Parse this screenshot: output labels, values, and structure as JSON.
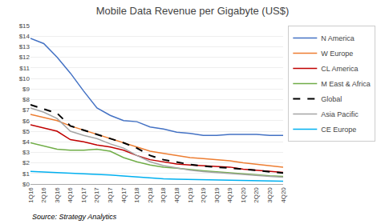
{
  "chart_data": {
    "type": "line",
    "title": "Mobile Data Revenue per Gigabyte (US$)",
    "annotations": [
      "Source: Strategy Analytics"
    ],
    "categories": [
      "1Q16",
      "2Q16",
      "3Q16",
      "4Q16",
      "1Q17",
      "2Q17",
      "3Q17",
      "4Q17",
      "1Q18",
      "2Q18",
      "3Q18",
      "4Q18",
      "1Q19",
      "2Q19",
      "3Q19",
      "4Q19",
      "1Q20",
      "2Q20",
      "3Q20",
      "4Q20"
    ],
    "series": [
      {
        "name": "N America",
        "color": "#4472C4",
        "line_style": "solid",
        "values": [
          13.8,
          13.3,
          12.0,
          10.5,
          8.8,
          7.2,
          6.5,
          6.0,
          5.9,
          5.4,
          5.2,
          4.9,
          4.8,
          4.6,
          4.6,
          4.7,
          4.7,
          4.7,
          4.6,
          4.6
        ]
      },
      {
        "name": "W Europe",
        "color": "#ED7D31",
        "line_style": "solid",
        "values": [
          6.6,
          6.3,
          6.0,
          5.5,
          5.1,
          4.7,
          4.3,
          3.9,
          3.5,
          3.1,
          2.9,
          2.7,
          2.5,
          2.4,
          2.3,
          2.2,
          2.0,
          1.85,
          1.7,
          1.6
        ]
      },
      {
        "name": "CL America",
        "color": "#C00000",
        "line_style": "solid",
        "values": [
          5.6,
          5.3,
          5.0,
          4.2,
          4.0,
          3.7,
          3.5,
          3.2,
          2.7,
          2.3,
          2.1,
          1.9,
          1.8,
          1.75,
          1.65,
          1.6,
          1.4,
          1.3,
          1.2,
          1.1
        ]
      },
      {
        "name": "M East & Africa",
        "color": "#70AD47",
        "line_style": "solid",
        "values": [
          3.9,
          3.6,
          3.3,
          3.2,
          3.2,
          3.3,
          3.1,
          2.5,
          2.1,
          1.8,
          1.6,
          1.5,
          1.35,
          1.25,
          1.15,
          1.05,
          0.95,
          0.85,
          0.78,
          0.72
        ]
      },
      {
        "name": "Global",
        "color": "#000000",
        "line_style": "dashed",
        "values": [
          7.5,
          7.1,
          6.7,
          5.5,
          5.1,
          4.7,
          4.3,
          3.9,
          3.4,
          2.7,
          2.3,
          2.05,
          1.85,
          1.7,
          1.6,
          1.5,
          1.42,
          1.3,
          1.15,
          1.05
        ]
      },
      {
        "name": "Asia Pacific",
        "color": "#A5A5A5",
        "line_style": "solid",
        "values": [
          7.2,
          6.8,
          6.2,
          5.0,
          4.6,
          4.3,
          3.8,
          3.4,
          2.7,
          2.1,
          1.75,
          1.5,
          1.3,
          1.18,
          1.08,
          0.98,
          0.9,
          0.82,
          0.72,
          0.65
        ]
      },
      {
        "name": "CE Europe",
        "color": "#00B0F0",
        "line_style": "solid",
        "values": [
          1.2,
          1.15,
          1.1,
          1.05,
          1.0,
          0.95,
          0.85,
          0.75,
          0.65,
          0.55,
          0.5,
          0.45,
          0.42,
          0.4,
          0.38,
          0.35,
          0.33,
          0.31,
          0.28,
          0.26
        ]
      }
    ],
    "ylim": [
      0,
      15
    ],
    "yticks": [
      {
        "value": 0,
        "label": "$0"
      },
      {
        "value": 1,
        "label": "$1"
      },
      {
        "value": 2,
        "label": "$2"
      },
      {
        "value": 3,
        "label": "$3"
      },
      {
        "value": 4,
        "label": "$4"
      },
      {
        "value": 5,
        "label": "$5"
      },
      {
        "value": 6,
        "label": "$6"
      },
      {
        "value": 7,
        "label": "$7"
      },
      {
        "value": 8,
        "label": "$8"
      },
      {
        "value": 9,
        "label": "$9"
      },
      {
        "value": 10,
        "label": "$10"
      },
      {
        "value": 11,
        "label": "$11"
      },
      {
        "value": 12,
        "label": "$12"
      },
      {
        "value": 13,
        "label": "$13"
      },
      {
        "value": 14,
        "label": "$14"
      },
      {
        "value": 15,
        "label": "$15"
      }
    ],
    "grid": true,
    "legend": "right"
  }
}
